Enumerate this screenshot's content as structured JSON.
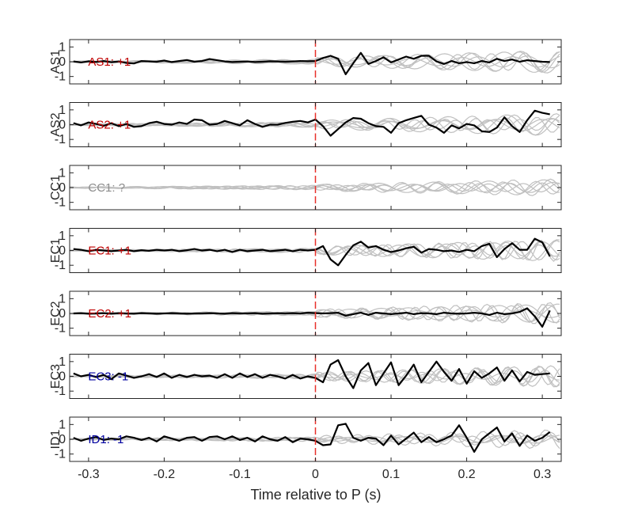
{
  "chart_data": {
    "type": "line",
    "xlabel": "Time relative to P (s)",
    "xlim": [
      -0.325,
      0.325
    ],
    "xticks": [
      -0.3,
      -0.2,
      -0.1,
      0,
      0.1,
      0.2,
      0.3
    ],
    "xtick_labels": [
      "-0.3",
      "-0.2",
      "-0.1",
      "0",
      "0.1",
      "0.2",
      "0.3"
    ],
    "ylim": [
      -1.5,
      1.5
    ],
    "yticks": [
      -1,
      0,
      1
    ],
    "ytick_labels": [
      "-1",
      "0",
      "1"
    ],
    "p_arrival_time": 0,
    "colors": {
      "positive": "#c00000",
      "negative": "#0000a0",
      "unknown": "#8c8c8c",
      "marker": "#e8302a",
      "trace": "#000000",
      "background_traces": "#c0c0c0"
    },
    "panels": [
      {
        "ylabel": "AS1",
        "annotation": "AS1: +1",
        "polarity": "positive",
        "x": [
          -0.32,
          -0.31,
          -0.3,
          -0.29,
          -0.28,
          -0.27,
          -0.26,
          -0.25,
          -0.24,
          -0.23,
          -0.22,
          -0.21,
          -0.2,
          -0.19,
          -0.18,
          -0.17,
          -0.16,
          -0.15,
          -0.14,
          -0.13,
          -0.12,
          -0.11,
          -0.1,
          -0.09,
          -0.08,
          -0.07,
          -0.06,
          -0.05,
          -0.04,
          -0.03,
          -0.02,
          -0.01,
          0.0,
          0.01,
          0.02,
          0.03,
          0.04,
          0.05,
          0.06,
          0.07,
          0.08,
          0.09,
          0.1,
          0.11,
          0.12,
          0.13,
          0.14,
          0.15,
          0.16,
          0.17,
          0.18,
          0.19,
          0.2,
          0.21,
          0.22,
          0.23,
          0.24,
          0.25,
          0.26,
          0.27,
          0.28,
          0.29,
          0.3,
          0.31
        ],
        "y": [
          0.02,
          -0.05,
          0.03,
          -0.02,
          0.05,
          -0.03,
          0.02,
          -0.08,
          -0.12,
          0.05,
          0.02,
          0.0,
          0.08,
          -0.02,
          0.05,
          0.12,
          0.0,
          0.05,
          0.18,
          0.1,
          0.02,
          -0.02,
          0.0,
          0.02,
          -0.02,
          0.0,
          0.03,
          0.02,
          0.0,
          0.02,
          0.05,
          0.03,
          0.05,
          0.25,
          0.4,
          0.2,
          -0.85,
          -0.1,
          0.6,
          -0.15,
          0.05,
          0.3,
          -0.05,
          0.15,
          0.35,
          0.2,
          0.4,
          0.4,
          0.02,
          -0.15,
          0.05,
          -0.1,
          -0.02,
          -0.1,
          0.05,
          -0.05,
          0.2,
          0.05,
          0.15,
          0.0,
          0.1,
          0.05,
          0.0,
          -0.02
        ]
      },
      {
        "ylabel": "AS2",
        "annotation": "AS2: +1",
        "polarity": "positive",
        "x": [
          -0.32,
          -0.31,
          -0.3,
          -0.29,
          -0.28,
          -0.27,
          -0.26,
          -0.25,
          -0.24,
          -0.23,
          -0.22,
          -0.21,
          -0.2,
          -0.19,
          -0.18,
          -0.17,
          -0.16,
          -0.15,
          -0.14,
          -0.13,
          -0.12,
          -0.11,
          -0.1,
          -0.09,
          -0.08,
          -0.07,
          -0.06,
          -0.05,
          -0.04,
          -0.03,
          -0.02,
          -0.01,
          0.0,
          0.01,
          0.02,
          0.03,
          0.04,
          0.05,
          0.06,
          0.07,
          0.08,
          0.09,
          0.1,
          0.11,
          0.12,
          0.13,
          0.14,
          0.15,
          0.16,
          0.17,
          0.18,
          0.19,
          0.2,
          0.21,
          0.22,
          0.23,
          0.24,
          0.25,
          0.26,
          0.27,
          0.28,
          0.29,
          0.3,
          0.31
        ],
        "y": [
          0.1,
          -0.05,
          0.15,
          0.05,
          -0.08,
          0.1,
          -0.1,
          0.05,
          -0.15,
          -0.1,
          0.1,
          0.2,
          0.05,
          0.0,
          0.15,
          0.05,
          0.35,
          0.3,
          0.0,
          0.05,
          0.25,
          0.1,
          -0.05,
          0.3,
          0.05,
          -0.15,
          0.0,
          0.0,
          0.12,
          0.2,
          0.25,
          0.15,
          0.35,
          -0.1,
          -0.75,
          -0.3,
          0.15,
          0.45,
          0.4,
          0.1,
          -0.1,
          -0.15,
          -0.55,
          0.1,
          0.3,
          0.45,
          0.6,
          0.0,
          -0.2,
          -0.55,
          -0.05,
          -0.25,
          0.05,
          -0.05,
          -0.45,
          -0.5,
          -0.2,
          0.5,
          -0.1,
          -0.5,
          0.3,
          0.95,
          0.8,
          0.7
        ]
      },
      {
        "ylabel": "CC1",
        "annotation": "CC1: ?",
        "polarity": "unknown",
        "x": [],
        "y": []
      },
      {
        "ylabel": "EC1",
        "annotation": "EC1: +1",
        "polarity": "positive",
        "x": [
          -0.32,
          -0.31,
          -0.3,
          -0.29,
          -0.28,
          -0.27,
          -0.26,
          -0.25,
          -0.24,
          -0.23,
          -0.22,
          -0.21,
          -0.2,
          -0.19,
          -0.18,
          -0.17,
          -0.16,
          -0.15,
          -0.14,
          -0.13,
          -0.12,
          -0.11,
          -0.1,
          -0.09,
          -0.08,
          -0.07,
          -0.06,
          -0.05,
          -0.04,
          -0.03,
          -0.02,
          -0.01,
          0.0,
          0.01,
          0.02,
          0.03,
          0.04,
          0.05,
          0.06,
          0.07,
          0.08,
          0.09,
          0.1,
          0.11,
          0.12,
          0.13,
          0.14,
          0.15,
          0.16,
          0.17,
          0.18,
          0.19,
          0.2,
          0.21,
          0.22,
          0.23,
          0.24,
          0.25,
          0.26,
          0.27,
          0.28,
          0.29,
          0.3,
          0.31
        ],
        "y": [
          0.1,
          0.05,
          -0.05,
          0.05,
          0.0,
          -0.05,
          0.0,
          0.05,
          -0.05,
          0.02,
          -0.02,
          0.05,
          0.0,
          0.05,
          -0.05,
          0.02,
          0.1,
          0.0,
          0.05,
          -0.05,
          0.05,
          -0.1,
          0.05,
          -0.05,
          0.0,
          0.05,
          -0.05,
          0.0,
          0.05,
          -0.05,
          0.05,
          0.0,
          0.05,
          0.3,
          -0.6,
          -1.0,
          -0.3,
          0.35,
          0.6,
          0.2,
          0.3,
          0.05,
          -0.1,
          0.0,
          0.15,
          0.25,
          -0.15,
          0.1,
          0.05,
          -0.05,
          0.0,
          -0.1,
          0.05,
          -0.05,
          0.3,
          0.45,
          -0.45,
          0.1,
          0.5,
          0.05,
          0.05,
          0.8,
          0.55,
          -0.4
        ]
      },
      {
        "ylabel": "EC2",
        "annotation": "EC2: +1",
        "polarity": "positive",
        "x": [
          -0.32,
          -0.31,
          -0.3,
          -0.29,
          -0.28,
          -0.27,
          -0.26,
          -0.25,
          -0.24,
          -0.23,
          -0.22,
          -0.21,
          -0.2,
          -0.19,
          -0.18,
          -0.17,
          -0.16,
          -0.15,
          -0.14,
          -0.13,
          -0.12,
          -0.11,
          -0.1,
          -0.09,
          -0.08,
          -0.07,
          -0.06,
          -0.05,
          -0.04,
          -0.03,
          -0.02,
          -0.01,
          0.0,
          0.01,
          0.02,
          0.03,
          0.04,
          0.05,
          0.06,
          0.07,
          0.08,
          0.09,
          0.1,
          0.11,
          0.12,
          0.13,
          0.14,
          0.15,
          0.16,
          0.17,
          0.18,
          0.19,
          0.2,
          0.21,
          0.22,
          0.23,
          0.24,
          0.25,
          0.26,
          0.27,
          0.28,
          0.29,
          0.3,
          0.31
        ],
        "y": [
          0.0,
          0.02,
          -0.02,
          0.0,
          0.02,
          -0.02,
          0.02,
          0.0,
          -0.02,
          0.02,
          0.0,
          -0.02,
          0.0,
          0.02,
          0.0,
          -0.02,
          0.0,
          0.0,
          0.02,
          0.0,
          -0.02,
          0.02,
          0.0,
          0.0,
          0.02,
          -0.02,
          0.0,
          0.02,
          0.0,
          0.02,
          0.0,
          0.05,
          0.02,
          0.0,
          0.02,
          0.05,
          -0.15,
          -0.05,
          0.05,
          -0.1,
          0.05,
          0.0,
          -0.05,
          0.0,
          0.05,
          -0.05,
          0.02,
          0.0,
          -0.05,
          0.05,
          0.0,
          -0.02,
          0.0,
          0.05,
          0.0,
          -0.1,
          0.05,
          -0.05,
          0.0,
          0.1,
          0.35,
          -0.2,
          -0.9,
          0.2
        ]
      },
      {
        "ylabel": "EC3",
        "annotation": "EC3: -1",
        "polarity": "negative",
        "x": [
          -0.32,
          -0.31,
          -0.3,
          -0.29,
          -0.28,
          -0.27,
          -0.26,
          -0.25,
          -0.24,
          -0.23,
          -0.22,
          -0.21,
          -0.2,
          -0.19,
          -0.18,
          -0.17,
          -0.16,
          -0.15,
          -0.14,
          -0.13,
          -0.12,
          -0.11,
          -0.1,
          -0.09,
          -0.08,
          -0.07,
          -0.06,
          -0.05,
          -0.04,
          -0.03,
          -0.02,
          -0.01,
          0.0,
          0.01,
          0.02,
          0.03,
          0.04,
          0.05,
          0.06,
          0.07,
          0.08,
          0.09,
          0.1,
          0.11,
          0.12,
          0.13,
          0.14,
          0.15,
          0.16,
          0.17,
          0.18,
          0.19,
          0.2,
          0.21,
          0.22,
          0.23,
          0.24,
          0.25,
          0.26,
          0.27,
          0.28,
          0.29,
          0.3,
          0.31
        ],
        "y": [
          0.2,
          0.0,
          0.1,
          -0.05,
          0.1,
          -0.2,
          0.2,
          0.05,
          -0.1,
          0.0,
          0.15,
          -0.05,
          0.2,
          -0.1,
          0.1,
          -0.05,
          0.1,
          0.0,
          0.05,
          -0.1,
          0.15,
          -0.1,
          0.2,
          -0.05,
          0.15,
          -0.1,
          0.1,
          0.0,
          -0.15,
          0.1,
          -0.15,
          0.0,
          -0.1,
          -0.4,
          0.8,
          1.1,
          0.0,
          -0.8,
          0.4,
          0.9,
          -0.6,
          0.2,
          0.95,
          -0.6,
          0.05,
          0.8,
          -0.4,
          0.3,
          1.0,
          0.3,
          -0.3,
          0.5,
          -0.5,
          0.35,
          -0.1,
          0.2,
          0.6,
          -0.3,
          0.4,
          -0.35,
          0.3,
          0.1,
          0.15,
          0.2
        ]
      },
      {
        "ylabel": "ID1",
        "annotation": "ID1: -1",
        "polarity": "negative",
        "x": [
          -0.32,
          -0.31,
          -0.3,
          -0.29,
          -0.28,
          -0.27,
          -0.26,
          -0.25,
          -0.24,
          -0.23,
          -0.22,
          -0.21,
          -0.2,
          -0.19,
          -0.18,
          -0.17,
          -0.16,
          -0.15,
          -0.14,
          -0.13,
          -0.12,
          -0.11,
          -0.1,
          -0.09,
          -0.08,
          -0.07,
          -0.06,
          -0.05,
          -0.04,
          -0.03,
          -0.02,
          -0.01,
          0.0,
          0.01,
          0.02,
          0.03,
          0.04,
          0.05,
          0.06,
          0.07,
          0.08,
          0.09,
          0.1,
          0.11,
          0.12,
          0.13,
          0.14,
          0.15,
          0.16,
          0.17,
          0.18,
          0.19,
          0.2,
          0.21,
          0.22,
          0.23,
          0.24,
          0.25,
          0.26,
          0.27,
          0.28,
          0.29,
          0.3,
          0.31
        ],
        "y": [
          0.1,
          -0.1,
          0.05,
          0.15,
          -0.05,
          0.05,
          0.0,
          0.2,
          0.1,
          -0.05,
          0.1,
          -0.15,
          0.2,
          0.05,
          -0.1,
          0.1,
          0.15,
          -0.1,
          0.15,
          0.2,
          0.0,
          0.2,
          -0.05,
          0.1,
          -0.15,
          0.2,
          0.0,
          -0.1,
          0.15,
          -0.2,
          0.05,
          0.0,
          -0.1,
          -0.4,
          -0.35,
          0.95,
          1.05,
          0.1,
          -0.1,
          0.1,
          0.05,
          -0.4,
          0.25,
          -0.35,
          0.05,
          0.45,
          -0.2,
          0.15,
          -0.2,
          0.0,
          0.25,
          0.95,
          0.1,
          -0.85,
          0.0,
          0.4,
          0.8,
          -0.15,
          0.4,
          -0.45,
          0.25,
          -0.1,
          0.1,
          0.5
        ]
      }
    ]
  }
}
